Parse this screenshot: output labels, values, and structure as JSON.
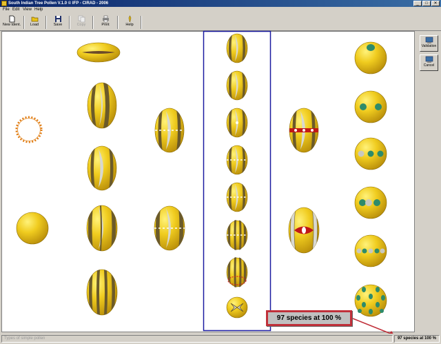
{
  "window": {
    "title": "South Indian Tree Pollen V.1.0 © IFP - CIRAD - 2006",
    "controls": [
      "_",
      "□",
      "✕"
    ]
  },
  "menu": [
    "File",
    "Edit",
    "View",
    "Help"
  ],
  "toolbar": {
    "new_ident": "New Ident.",
    "load": "Load",
    "save": "Save",
    "copy": "Copy",
    "print": "Print",
    "help": "Help"
  },
  "side_buttons": {
    "validation": "Validation",
    "cancel": "Cancel"
  },
  "status": {
    "left": "Types of simple pollen",
    "right": "97 species at 100 %"
  },
  "callout": "97 species at 100 %",
  "colors": {
    "pollen_yellow": "#e8c21a",
    "pollen_dark": "#6b5a2a",
    "selection_border": "#1a1aa0",
    "callout_border": "#c0303a",
    "pore_green": "#2e8b6a"
  },
  "icons": {
    "new": "new-document-icon",
    "load": "open-folder-icon",
    "save": "floppy-disk-icon",
    "copy": "copy-icon",
    "print": "printer-icon",
    "help": "help-icon",
    "validation": "validation-icon",
    "cancel": "cancel-icon"
  }
}
